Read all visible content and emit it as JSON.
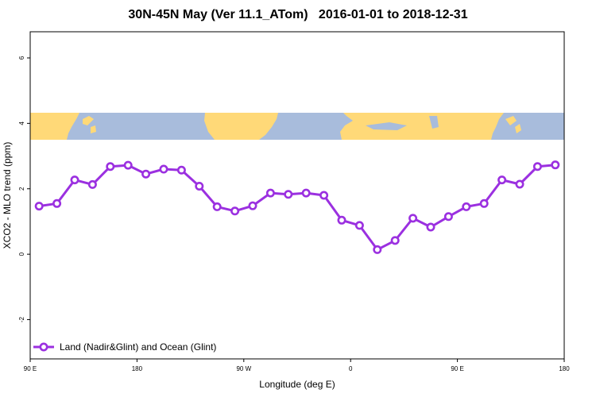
{
  "chart_data": {
    "type": "line",
    "title": "30N-45N May (Ver 11.1_ATom)   2016-01-01 to 2018-12-31",
    "xlabel": "Longitude (deg E)",
    "ylabel": "XCO2 - MLO trend (ppm)",
    "x_ticks": [
      "90 E",
      "180",
      "90 W",
      "0",
      "90 E",
      "180"
    ],
    "x_tick_values": [
      90,
      180,
      270,
      360,
      450,
      540
    ],
    "xlim": [
      90,
      540
    ],
    "y_ticks": [
      "-2",
      "0",
      "2",
      "4",
      "6"
    ],
    "y_tick_values": [
      -2,
      0,
      2,
      4,
      6
    ],
    "ylim": [
      -3.2,
      6.8
    ],
    "grid": false,
    "legend_position": "bottom-left",
    "map_band_y": [
      3.45,
      4.3
    ],
    "colors": {
      "series": "#9b30e0",
      "land": "#ffd978",
      "ocean": "#a8bcdc"
    },
    "series": [
      {
        "name": "Land (Nadir&Glint) and Ocean (Glint)",
        "x": [
          97.5,
          112.5,
          127.5,
          142.5,
          157.5,
          172.5,
          187.5,
          202.5,
          217.5,
          232.5,
          247.5,
          262.5,
          277.5,
          292.5,
          307.5,
          322.5,
          337.5,
          352.5,
          367.5,
          382.5,
          397.5,
          412.5,
          427.5,
          442.5,
          457.5,
          472.5,
          487.5,
          502.5,
          517.5,
          532.5
        ],
        "y": [
          1.47,
          1.55,
          2.27,
          2.13,
          2.68,
          2.72,
          2.45,
          2.6,
          2.57,
          2.08,
          1.45,
          1.32,
          1.48,
          1.87,
          1.83,
          1.87,
          1.8,
          1.04,
          0.88,
          0.14,
          0.42,
          1.1,
          0.83,
          1.15,
          1.45,
          1.55,
          2.27,
          2.14,
          2.68,
          2.73
        ]
      }
    ]
  }
}
